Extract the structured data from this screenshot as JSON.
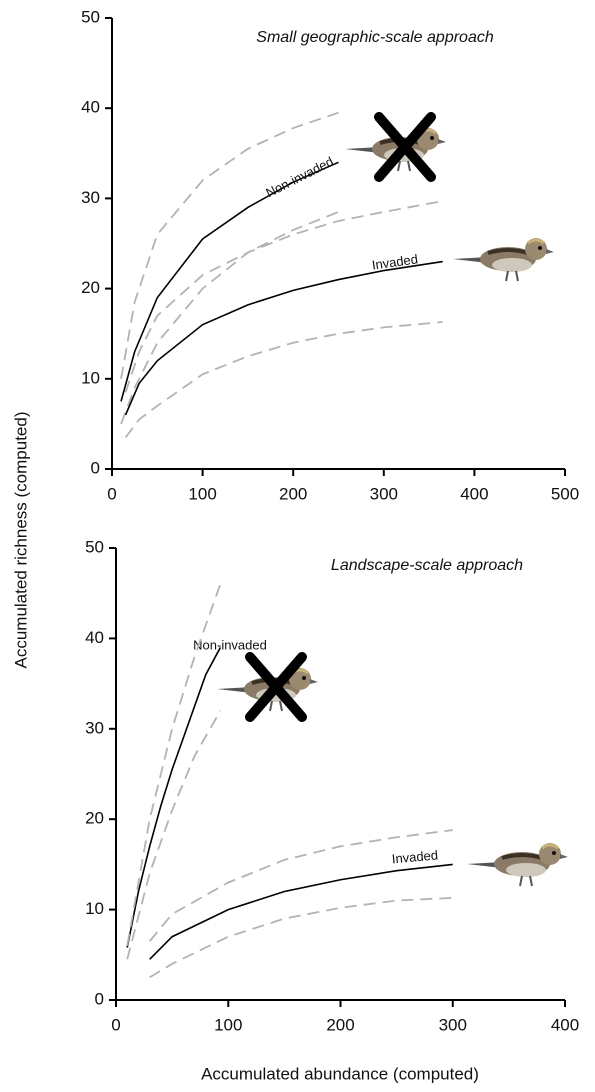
{
  "y_label": "Accumulated richness (computed)",
  "x_label": "Accumulated abundance (computed)",
  "chart_data": [
    {
      "type": "line",
      "title": "Small geographic-scale approach",
      "xlim": [
        0,
        500
      ],
      "xticks": [
        0,
        100,
        200,
        300,
        400,
        500
      ],
      "ylim": [
        0,
        50
      ],
      "yticks": [
        0,
        10,
        20,
        30,
        40,
        50
      ],
      "series": [
        {
          "name": "Non-invaded",
          "color": "#000000",
          "dashed": false,
          "x": [
            10,
            25,
            50,
            100,
            150,
            200,
            250
          ],
          "values": [
            7.5,
            13,
            19,
            25.5,
            29,
            31.8,
            34
          ]
        },
        {
          "color": "#b3b3b3",
          "dashed": true,
          "x": [
            10,
            25,
            50,
            100,
            150,
            200,
            250
          ],
          "values": [
            10,
            18.5,
            26,
            32,
            35.5,
            37.8,
            39.5
          ]
        },
        {
          "color": "#b3b3b3",
          "dashed": true,
          "x": [
            10,
            25,
            50,
            100,
            150,
            200,
            250
          ],
          "values": [
            5,
            9,
            14,
            20,
            24,
            26.5,
            28.5
          ]
        },
        {
          "name": "Invaded",
          "color": "#000000",
          "dashed": false,
          "x": [
            15,
            30,
            50,
            100,
            150,
            200,
            250,
            300,
            365
          ],
          "values": [
            6,
            9.5,
            12,
            16,
            18.2,
            19.8,
            21,
            22,
            23
          ]
        },
        {
          "color": "#b3b3b3",
          "dashed": true,
          "x": [
            15,
            30,
            50,
            100,
            150,
            200,
            250,
            300,
            365
          ],
          "values": [
            8.5,
            13,
            17,
            21.5,
            24,
            26,
            27.5,
            28.5,
            29.7
          ]
        },
        {
          "color": "#b3b3b3",
          "dashed": true,
          "x": [
            15,
            30,
            50,
            100,
            150,
            200,
            250,
            300,
            365
          ],
          "values": [
            3.5,
            5.5,
            7,
            10.5,
            12.5,
            14,
            15,
            15.7,
            16.3
          ]
        }
      ]
    },
    {
      "type": "line",
      "title": "Landscape-scale approach",
      "xlim": [
        0,
        400
      ],
      "xticks": [
        0,
        100,
        200,
        300,
        400
      ],
      "ylim": [
        0,
        50
      ],
      "yticks": [
        0,
        10,
        20,
        30,
        40,
        50
      ],
      "series": [
        {
          "name": "Non-invaded",
          "color": "#000000",
          "dashed": false,
          "x": [
            10,
            20,
            30,
            40,
            50,
            60,
            70,
            80,
            93
          ],
          "values": [
            5.8,
            12,
            17,
            21.5,
            25.5,
            29,
            32.5,
            36,
            39
          ]
        },
        {
          "color": "#b3b3b3",
          "dashed": true,
          "x": [
            10,
            30,
            50,
            70,
            93
          ],
          "values": [
            6,
            20,
            30,
            38,
            46
          ]
        },
        {
          "color": "#b3b3b3",
          "dashed": true,
          "x": [
            10,
            30,
            50,
            70,
            93
          ],
          "values": [
            4.5,
            14,
            21,
            27,
            32
          ]
        },
        {
          "name": "Invaded",
          "color": "#000000",
          "dashed": false,
          "x": [
            30,
            50,
            100,
            150,
            200,
            250,
            300
          ],
          "values": [
            4.5,
            7,
            10,
            12,
            13.3,
            14.3,
            15
          ]
        },
        {
          "color": "#b3b3b3",
          "dashed": true,
          "x": [
            30,
            50,
            100,
            150,
            200,
            250,
            300
          ],
          "values": [
            6.5,
            9.5,
            13,
            15.5,
            17,
            18,
            18.8
          ]
        },
        {
          "color": "#b3b3b3",
          "dashed": true,
          "x": [
            30,
            50,
            100,
            150,
            200,
            250,
            300
          ],
          "values": [
            2.5,
            4,
            7,
            9,
            10.2,
            11,
            11.3
          ]
        }
      ]
    }
  ]
}
